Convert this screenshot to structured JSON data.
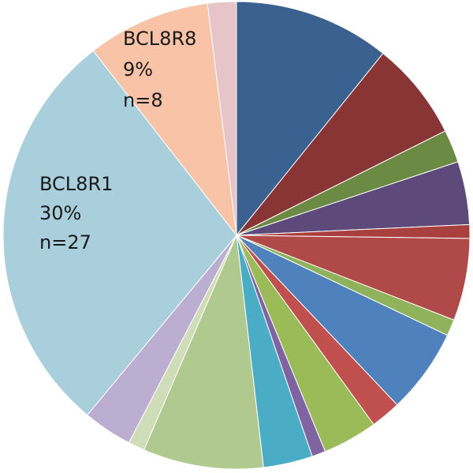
{
  "chart_data": {
    "type": "pie",
    "start_angle": "12 o'clock",
    "direction": "clockwise",
    "legend": "none",
    "slices": [
      {
        "label": "",
        "value": 11.4,
        "color": "#3a6190"
      },
      {
        "label": "",
        "value": 7.2,
        "color": "#893536"
      },
      {
        "label": "",
        "value": 2.4,
        "color": "#6b8a43"
      },
      {
        "label": "",
        "value": 4.6,
        "color": "#5d4a7a"
      },
      {
        "label": "",
        "value": 1.0,
        "color": "#a8403e"
      },
      {
        "label": "",
        "value": 6.0,
        "color": "#b04a48"
      },
      {
        "label": "",
        "value": 1.2,
        "color": "#90b25a"
      },
      {
        "label": "",
        "value": 6.2,
        "color": "#4f81bd"
      },
      {
        "label": "",
        "value": 2.2,
        "color": "#c0504d"
      },
      {
        "label": "",
        "value": 4.0,
        "color": "#9bbb59"
      },
      {
        "label": "",
        "value": 1.0,
        "color": "#8064a2"
      },
      {
        "label": "",
        "value": 3.6,
        "color": "#4bacc6"
      },
      {
        "label": "",
        "value": 8.8,
        "color": "#b0c98e"
      },
      {
        "label": "",
        "value": 1.2,
        "color": "#cfdeb8"
      },
      {
        "label": "",
        "value": 3.6,
        "color": "#bbaed0"
      },
      {
        "label": "BCL8R1",
        "pct": "30%",
        "n": "n=27",
        "value": 30.0,
        "color": "#a9cfdc"
      },
      {
        "label": "BCL8R8",
        "pct": "9%",
        "n": "n=8",
        "value": 9.0,
        "color": "#f8c3a6"
      },
      {
        "label": "",
        "value": 2.1,
        "color": "#e6c4c8"
      }
    ]
  }
}
